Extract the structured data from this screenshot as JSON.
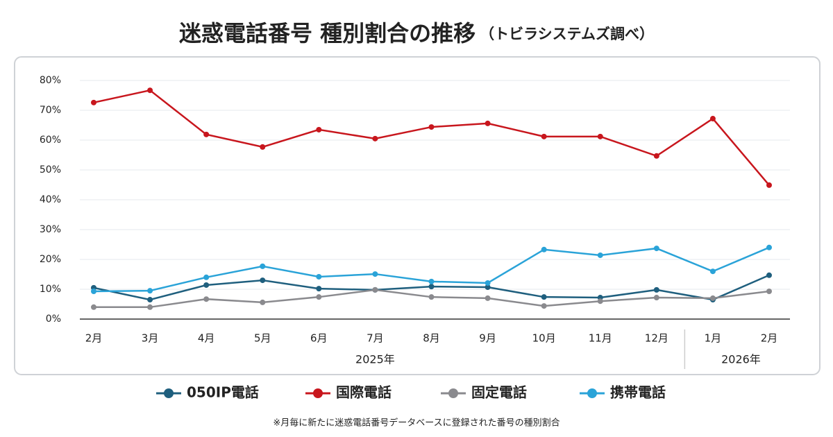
{
  "chart_data": {
    "type": "line",
    "title": "迷惑電話番号 種別割合の推移",
    "subtitle": "（トビラシステムズ調べ）",
    "categories": [
      "2月",
      "3月",
      "4月",
      "5月",
      "6月",
      "7月",
      "8月",
      "9月",
      "10月",
      "11月",
      "12月",
      "1月",
      "2月"
    ],
    "groups": [
      {
        "label": "2025年",
        "size": 11
      },
      {
        "label": "2026年",
        "size": 2
      }
    ],
    "series": [
      {
        "name": "050IP電話",
        "color": "#1f5f7e",
        "values": [
          10.5,
          6.5,
          11.4,
          13.0,
          10.2,
          9.8,
          10.9,
          10.7,
          7.4,
          7.2,
          9.8,
          6.5,
          14.7
        ]
      },
      {
        "name": "国際電話",
        "color": "#c8161d",
        "values": [
          72.6,
          76.7,
          61.9,
          57.7,
          63.5,
          60.5,
          64.4,
          65.6,
          61.2,
          61.2,
          54.7,
          67.2,
          44.9
        ]
      },
      {
        "name": "固定電話",
        "color": "#8a8a8e",
        "values": [
          4.0,
          4.0,
          6.7,
          5.6,
          7.4,
          9.8,
          7.4,
          7.0,
          4.4,
          6.0,
          7.2,
          7.0,
          9.3
        ]
      },
      {
        "name": "携帯電話",
        "color": "#2aa3d8",
        "values": [
          9.3,
          9.5,
          14.0,
          17.7,
          14.2,
          15.1,
          12.6,
          12.1,
          23.3,
          21.4,
          23.7,
          16.0,
          24.0
        ]
      }
    ],
    "ylim": [
      0,
      80
    ],
    "yticks": [
      {
        "value": 0,
        "label": "0%"
      },
      {
        "value": 10,
        "label": "10%"
      },
      {
        "value": 20,
        "label": "20%"
      },
      {
        "value": 30,
        "label": "30%"
      },
      {
        "value": 40,
        "label": "40%"
      },
      {
        "value": 50,
        "label": "50%"
      },
      {
        "value": 60,
        "label": "60%"
      },
      {
        "value": 70,
        "label": "70%"
      },
      {
        "value": 80,
        "label": "80%"
      }
    ],
    "grid": true,
    "footnote": "※月毎に新たに迷惑電話番号データベースに登録された番号の種別割合"
  }
}
